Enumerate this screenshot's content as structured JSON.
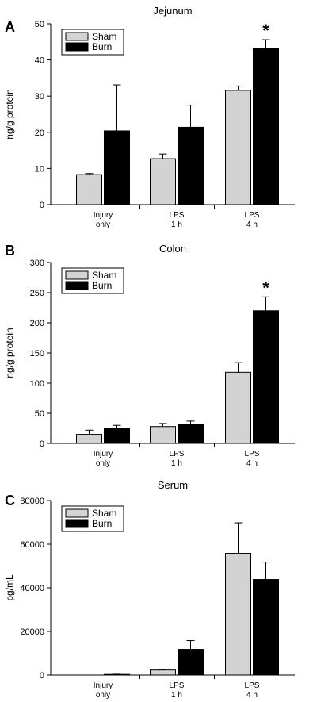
{
  "chart_data": [
    {
      "type": "bar",
      "panel": "A",
      "title": "Jejunum",
      "ylabel": "ng/g protein",
      "ylim": [
        0,
        50
      ],
      "yticks": [
        0,
        10,
        20,
        30,
        40,
        50
      ],
      "categories": [
        [
          "Injury",
          "only"
        ],
        [
          "LPS",
          "1 h"
        ],
        [
          "LPS",
          "4 h"
        ]
      ],
      "series": [
        {
          "name": "Sham",
          "color": "#d3d3d3",
          "values": [
            8.3,
            12.7,
            31.6
          ],
          "errors": [
            0.3,
            1.3,
            1.2
          ]
        },
        {
          "name": "Burn",
          "color": "#000000",
          "values": [
            20.4,
            21.4,
            43.1
          ],
          "errors": [
            12.7,
            6.1,
            2.5
          ]
        }
      ],
      "significance": [
        {
          "category": 2,
          "series": 1,
          "mark": "*"
        }
      ],
      "legend_position": "top-left",
      "grid": false
    },
    {
      "type": "bar",
      "panel": "B",
      "title": "Colon",
      "ylabel": "ng/g protein",
      "ylim": [
        0,
        300
      ],
      "yticks": [
        0,
        50,
        100,
        150,
        200,
        250,
        300
      ],
      "categories": [
        [
          "Injury",
          "only"
        ],
        [
          "LPS",
          "1 h"
        ],
        [
          "LPS",
          "4 h"
        ]
      ],
      "series": [
        {
          "name": "Sham",
          "color": "#d3d3d3",
          "values": [
            15,
            28,
            118
          ],
          "errors": [
            7,
            5,
            16
          ]
        },
        {
          "name": "Burn",
          "color": "#000000",
          "values": [
            25,
            31,
            220
          ],
          "errors": [
            5,
            6,
            23
          ]
        }
      ],
      "significance": [
        {
          "category": 2,
          "series": 1,
          "mark": "*"
        }
      ],
      "legend_position": "top-left",
      "grid": false
    },
    {
      "type": "bar",
      "panel": "C",
      "title": "Serum",
      "ylabel": "pg/mL",
      "ylim": [
        0,
        80000
      ],
      "yticks": [
        0,
        20000,
        40000,
        60000,
        80000
      ],
      "categories": [
        [
          "Injury",
          "only"
        ],
        [
          "LPS",
          "1 h"
        ],
        [
          "LPS",
          "4 h"
        ]
      ],
      "series": [
        {
          "name": "Sham",
          "color": "#d3d3d3",
          "values": [
            0,
            2300,
            55800
          ],
          "errors": [
            0,
            300,
            14000
          ]
        },
        {
          "name": "Burn",
          "color": "#000000",
          "values": [
            300,
            11800,
            43800
          ],
          "errors": [
            100,
            4000,
            8000
          ]
        }
      ],
      "significance": [],
      "legend_position": "top-left",
      "grid": false
    }
  ]
}
